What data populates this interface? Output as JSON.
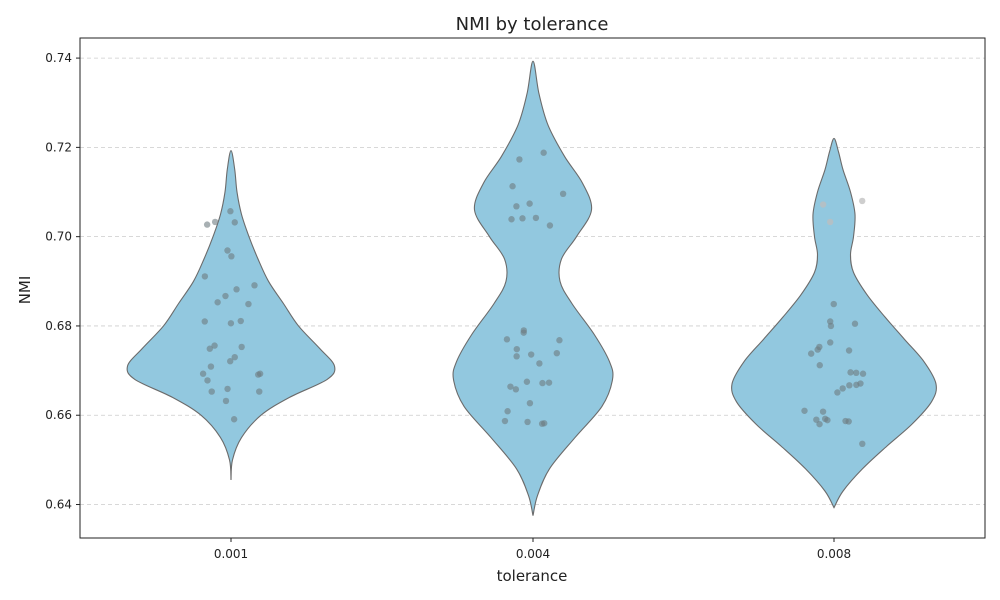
{
  "chart_data": {
    "type": "violin",
    "title": "NMI by tolerance",
    "xlabel": "tolerance",
    "ylabel": "NMI",
    "categories": [
      "0.001",
      "0.004",
      "0.008"
    ],
    "ylim": [
      0.6325,
      0.7445
    ],
    "yticks": [
      0.64,
      0.66,
      0.68,
      0.7,
      0.72,
      0.74
    ],
    "yticklabels": [
      "0.64",
      "0.66",
      "0.68",
      "0.70",
      "0.72",
      "0.74"
    ],
    "grid": "y-dashed",
    "colors": {
      "violin_fill": "#92c8df",
      "violin_edge": "#6b6b6b",
      "points": "#6e7b80",
      "grid": "#cccccc"
    },
    "violins": [
      {
        "category": "0.001",
        "range": [
          0.6455,
          0.7193
        ],
        "profile": [
          [
            0.6455,
            0.0
          ],
          [
            0.65,
            0.01
          ],
          [
            0.655,
            0.07
          ],
          [
            0.66,
            0.2
          ],
          [
            0.664,
            0.39
          ],
          [
            0.668,
            0.64
          ],
          [
            0.671,
            0.69
          ],
          [
            0.675,
            0.59
          ],
          [
            0.68,
            0.45
          ],
          [
            0.685,
            0.35
          ],
          [
            0.69,
            0.25
          ],
          [
            0.695,
            0.18
          ],
          [
            0.7,
            0.12
          ],
          [
            0.705,
            0.07
          ],
          [
            0.71,
            0.04
          ],
          [
            0.715,
            0.025
          ],
          [
            0.7193,
            0.0
          ]
        ],
        "points": [
          0.7057,
          0.7032,
          0.7027,
          0.7033,
          0.6969,
          0.6956,
          0.6911,
          0.6891,
          0.6882,
          0.6867,
          0.6853,
          0.6849,
          0.6811,
          0.681,
          0.6806,
          0.6756,
          0.6753,
          0.6749,
          0.673,
          0.6721,
          0.6709,
          0.6693,
          0.6691,
          0.6693,
          0.6678,
          0.6659,
          0.6653,
          0.6653,
          0.6632,
          0.6591
        ]
      },
      {
        "category": "0.004",
        "range": [
          0.6375,
          0.7393
        ],
        "profile": [
          [
            0.6375,
            0.0
          ],
          [
            0.642,
            0.03
          ],
          [
            0.648,
            0.11
          ],
          [
            0.655,
            0.28
          ],
          [
            0.662,
            0.46
          ],
          [
            0.668,
            0.53
          ],
          [
            0.672,
            0.51
          ],
          [
            0.678,
            0.41
          ],
          [
            0.685,
            0.26
          ],
          [
            0.69,
            0.18
          ],
          [
            0.695,
            0.19
          ],
          [
            0.7,
            0.29
          ],
          [
            0.706,
            0.39
          ],
          [
            0.712,
            0.33
          ],
          [
            0.718,
            0.21
          ],
          [
            0.725,
            0.1
          ],
          [
            0.732,
            0.04
          ],
          [
            0.7393,
            0.0
          ]
        ],
        "points": [
          0.7188,
          0.7173,
          0.7113,
          0.7096,
          0.7074,
          0.7068,
          0.7042,
          0.7041,
          0.7039,
          0.7025,
          0.679,
          0.6785,
          0.677,
          0.6768,
          0.6748,
          0.6739,
          0.6736,
          0.6732,
          0.6716,
          0.6675,
          0.6673,
          0.6672,
          0.6664,
          0.6658,
          0.6627,
          0.6609,
          0.6587,
          0.6585,
          0.6582,
          0.6581
        ]
      },
      {
        "category": "0.008",
        "range": [
          0.6393,
          0.722
        ],
        "profile": [
          [
            0.6393,
            0.0
          ],
          [
            0.643,
            0.06
          ],
          [
            0.648,
            0.19
          ],
          [
            0.653,
            0.35
          ],
          [
            0.658,
            0.52
          ],
          [
            0.663,
            0.65
          ],
          [
            0.667,
            0.68
          ],
          [
            0.672,
            0.6
          ],
          [
            0.677,
            0.47
          ],
          [
            0.682,
            0.34
          ],
          [
            0.687,
            0.22
          ],
          [
            0.692,
            0.13
          ],
          [
            0.696,
            0.11
          ],
          [
            0.7,
            0.13
          ],
          [
            0.705,
            0.14
          ],
          [
            0.71,
            0.11
          ],
          [
            0.715,
            0.06
          ],
          [
            0.719,
            0.03
          ],
          [
            0.722,
            0.0
          ]
        ],
        "points": [
          0.708,
          0.7072,
          0.7033,
          0.6849,
          0.681,
          0.6805,
          0.68,
          0.6763,
          0.6753,
          0.6747,
          0.6745,
          0.6738,
          0.6712,
          0.6696,
          0.6695,
          0.6693,
          0.6671,
          0.6668,
          0.6667,
          0.666,
          0.6651,
          0.661,
          0.6608,
          0.6592,
          0.659,
          0.6589,
          0.6587,
          0.6586,
          0.658,
          0.6536
        ]
      }
    ]
  }
}
